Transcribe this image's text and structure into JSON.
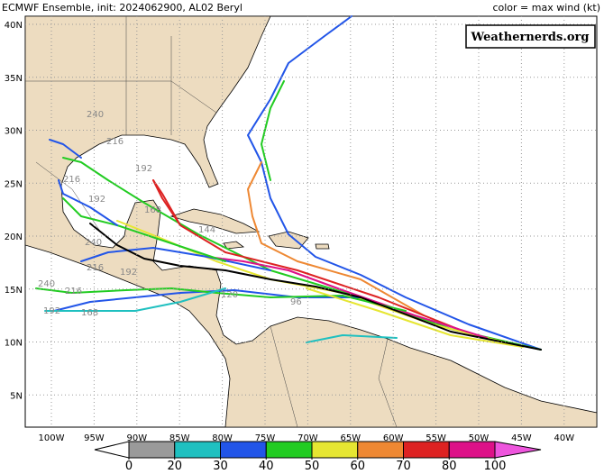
{
  "header": {
    "title": "ECMWF Ensemble, init: 2024062900, AL02 Beryl",
    "legend_label": "color = max wind (kt)",
    "credit": "Weathernerds.org"
  },
  "map": {
    "lon_ticks": [
      {
        "value": -100,
        "label": "100W"
      },
      {
        "value": -95,
        "label": "95W"
      },
      {
        "value": -90,
        "label": "90W"
      },
      {
        "value": -85,
        "label": "85W"
      },
      {
        "value": -80,
        "label": "80W"
      },
      {
        "value": -75,
        "label": "75W"
      },
      {
        "value": -70,
        "label": "70W"
      },
      {
        "value": -65,
        "label": "65W"
      },
      {
        "value": -60,
        "label": "60W"
      },
      {
        "value": -55,
        "label": "55W"
      },
      {
        "value": -50,
        "label": "50W"
      },
      {
        "value": -45,
        "label": "45W"
      },
      {
        "value": -40,
        "label": "40W"
      }
    ],
    "lat_ticks": [
      {
        "value": 40,
        "label": "40N"
      },
      {
        "value": 35,
        "label": "35N"
      },
      {
        "value": 30,
        "label": "30N"
      },
      {
        "value": 25,
        "label": "25N"
      },
      {
        "value": 20,
        "label": "20N"
      },
      {
        "value": 15,
        "label": "15N"
      },
      {
        "value": 10,
        "label": "10N"
      },
      {
        "value": 5,
        "label": "5N"
      }
    ],
    "track_labels": [
      "240",
      "216",
      "192",
      "216",
      "192",
      "168",
      "144",
      "240",
      "216",
      "192",
      "240",
      "216",
      "192",
      "168",
      "120",
      "96"
    ]
  },
  "colorbar": {
    "ticks": [
      0,
      20,
      30,
      40,
      50,
      60,
      70,
      80,
      100
    ],
    "colors": [
      "#9a9a9a",
      "#1fc0c0",
      "#2255e8",
      "#22cc22",
      "#e6e632",
      "#ee8833",
      "#dd2222",
      "#dd1188"
    ],
    "under_color": "#ffffff",
    "over_color": "#ee55dd"
  }
}
